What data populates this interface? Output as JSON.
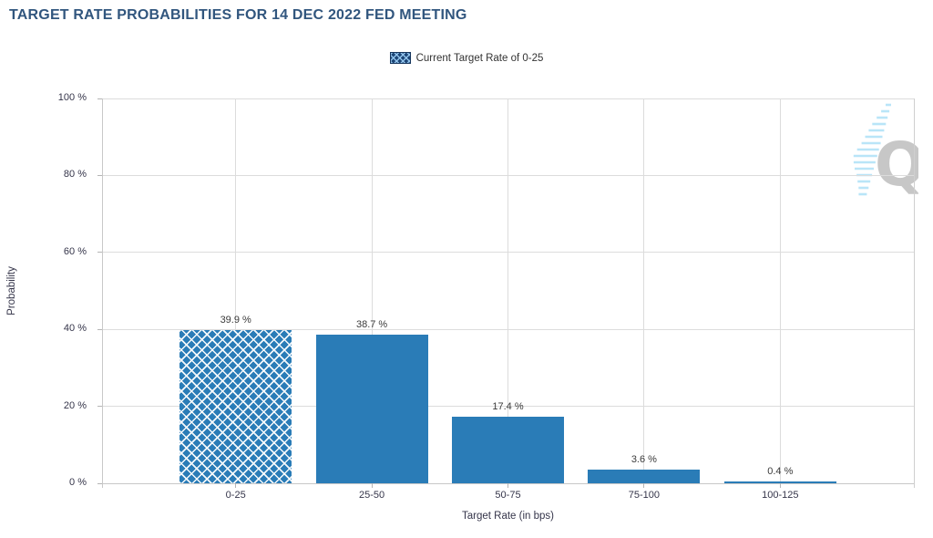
{
  "header": {
    "title": "TARGET RATE PROBABILITIES FOR 14 DEC 2022 FED MEETING"
  },
  "legend": {
    "label": "Current Target Rate of 0-25",
    "swatch_style": "crosshatch"
  },
  "watermark": {
    "letter": "Q"
  },
  "colors": {
    "bar": "#2a7cb7",
    "title_text": "#31567e",
    "grid": "#dcdcdc",
    "axis": "#c8c8c8",
    "label_text": "#3a3a3a",
    "tick_label_text": "#35354a",
    "watermark_q": "#c7c7c7",
    "watermark_wing": "#b9e5f8",
    "legend_swatch_bg": "#1d4677"
  },
  "chart_data": {
    "type": "bar",
    "title": "TARGET RATE PROBABILITIES FOR 14 DEC 2022 FED MEETING",
    "categories": [
      "0-25",
      "25-50",
      "50-75",
      "75-100",
      "100-125"
    ],
    "values": [
      39.9,
      38.7,
      17.4,
      3.6,
      0.4
    ],
    "value_labels": [
      "39.9 %",
      "38.7 %",
      "17.4 %",
      "3.6 %",
      "0.4 %"
    ],
    "hatched_category": "0-25",
    "xlabel": "Target Rate (in bps)",
    "ylabel": "Probability",
    "ylim": [
      0,
      100
    ],
    "ytick_step": 20,
    "ytick_labels": [
      "0 %",
      "20 %",
      "40 %",
      "60 %",
      "80 %",
      "100 %"
    ],
    "grid": true,
    "legend_entries": [
      "Current Target Rate of 0-25"
    ],
    "legend_position": "top-center"
  }
}
